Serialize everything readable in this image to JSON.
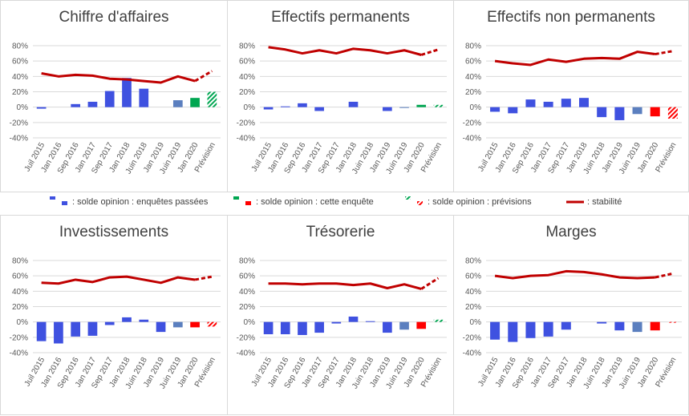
{
  "legend": {
    "items": [
      {
        "label": ": solde opinion : enquêtes passées",
        "type": "bar-past",
        "color": "#3f51e0",
        "color2": "#5b7fbf"
      },
      {
        "label": ": solde opinion : cette enquête",
        "type": "bar-current",
        "color": "#00a651",
        "color2": "#ff0000"
      },
      {
        "label": ": solde opinion : prévisions",
        "type": "bar-forecast",
        "color": "#00a651",
        "color2": "#ff0000"
      },
      {
        "label": ": stabilité",
        "type": "line",
        "color": "#c00000"
      }
    ]
  },
  "colors": {
    "past": "#3f51e0",
    "past_recent": "#5b7fbf",
    "positive": "#00a651",
    "negative": "#ff0000",
    "line": "#c00000",
    "grid": "#d9d9d9"
  },
  "chart_data": [
    {
      "type": "bar",
      "title": "Chiffre d'affaires",
      "categories": [
        "Juil 2015",
        "Jan 2016",
        "Sep 2016",
        "Jan 2017",
        "Sep 2017",
        "Jan 2018",
        "Juin 2018",
        "Jan 2019",
        "Juin 2019",
        "Jan 2020",
        "Prévision"
      ],
      "ytick_labels": [
        "80%",
        "60%",
        "40%",
        "20%",
        "0%",
        "-20%",
        "-40%"
      ],
      "ylim": [
        -40,
        80
      ],
      "bars": [
        -2,
        null,
        4,
        7,
        21,
        38,
        24,
        null,
        9,
        12,
        20
      ],
      "line": [
        44,
        40,
        42,
        41,
        37,
        36,
        34,
        32,
        40,
        34,
        47
      ],
      "grid": true
    },
    {
      "type": "bar",
      "title": "Effectifs permanents",
      "categories": [
        "Juil 2015",
        "Jan 2016",
        "Sep 2016",
        "Jan 2017",
        "Sep 2017",
        "Jan 2018",
        "Juin 2018",
        "Jan 2019",
        "Juin 2019",
        "Jan 2020",
        "Prévision"
      ],
      "ytick_labels": [
        "80%",
        "60%",
        "40%",
        "20%",
        "0%",
        "-20%",
        "-40%"
      ],
      "ylim": [
        -40,
        80
      ],
      "bars": [
        -3,
        1,
        5,
        -5,
        null,
        7,
        null,
        -5,
        -1,
        3,
        3
      ],
      "line": [
        78,
        75,
        70,
        74,
        70,
        76,
        74,
        70,
        74,
        68,
        75
      ],
      "grid": true
    },
    {
      "type": "bar",
      "title": "Effectifs non permanents",
      "categories": [
        "Juil 2015",
        "Jan 2016",
        "Sep 2016",
        "Jan 2017",
        "Sep 2017",
        "Jan 2018",
        "Juin 2018",
        "Jan 2019",
        "Juin 2019",
        "Jan 2020",
        "Prévision"
      ],
      "ytick_labels": [
        "80%",
        "60%",
        "40%",
        "20%",
        "0%",
        "-20%",
        "-40%"
      ],
      "ylim": [
        -40,
        80
      ],
      "bars": [
        -6,
        -8,
        10,
        7,
        11,
        12,
        -13,
        -17,
        -9,
        -12,
        -15
      ],
      "line": [
        60,
        57,
        55,
        62,
        59,
        63,
        64,
        63,
        72,
        69,
        73
      ],
      "grid": true
    },
    {
      "type": "bar",
      "title": "Investissements",
      "categories": [
        "Juil 2015",
        "Jan 2016",
        "Sep 2016",
        "Jan 2017",
        "Sep 2017",
        "Jan 2018",
        "Juin 2018",
        "Jan 2019",
        "Juin 2019",
        "Jan 2020",
        "Prévision"
      ],
      "ytick_labels": [
        "80%",
        "60%",
        "40%",
        "20%",
        "0%",
        "-20%",
        "-40%"
      ],
      "ylim": [
        -40,
        80
      ],
      "bars": [
        -25,
        -28,
        -19,
        -18,
        -4,
        6,
        3,
        -13,
        -7,
        -7,
        -6
      ],
      "line": [
        51,
        50,
        55,
        52,
        58,
        59,
        55,
        51,
        58,
        55,
        59
      ],
      "grid": true
    },
    {
      "type": "bar",
      "title": "Trésorerie",
      "categories": [
        "Juil 2015",
        "Jan 2016",
        "Sep 2016",
        "Jan 2017",
        "Sep 2017",
        "Jan 2018",
        "Juin 2018",
        "Jan 2019",
        "Juin 2019",
        "Jan 2020",
        "Prévision"
      ],
      "ytick_labels": [
        "80%",
        "60%",
        "40%",
        "20%",
        "0%",
        "-20%",
        "-40%"
      ],
      "ylim": [
        -40,
        80
      ],
      "bars": [
        -16,
        -16,
        -17,
        -14,
        -2,
        7,
        1,
        -14,
        -10,
        -9,
        3
      ],
      "line": [
        50,
        50,
        49,
        50,
        50,
        48,
        50,
        44,
        49,
        43,
        57
      ],
      "grid": true
    },
    {
      "type": "bar",
      "title": "Marges",
      "categories": [
        "Juil 2015",
        "Jan 2016",
        "Sep 2016",
        "Jan 2017",
        "Sep 2017",
        "Jan 2018",
        "Juin 2018",
        "Jan 2019",
        "Juin 2019",
        "Jan 2020",
        "Prévision"
      ],
      "ytick_labels": [
        "80%",
        "60%",
        "40%",
        "20%",
        "0%",
        "-20%",
        "-40%"
      ],
      "ylim": [
        -40,
        80
      ],
      "bars": [
        -23,
        -26,
        -21,
        -19,
        -10,
        null,
        -2,
        -11,
        -13,
        -11,
        -1
      ],
      "line": [
        60,
        57,
        60,
        61,
        66,
        65,
        62,
        58,
        57,
        58,
        63
      ],
      "grid": true
    }
  ]
}
